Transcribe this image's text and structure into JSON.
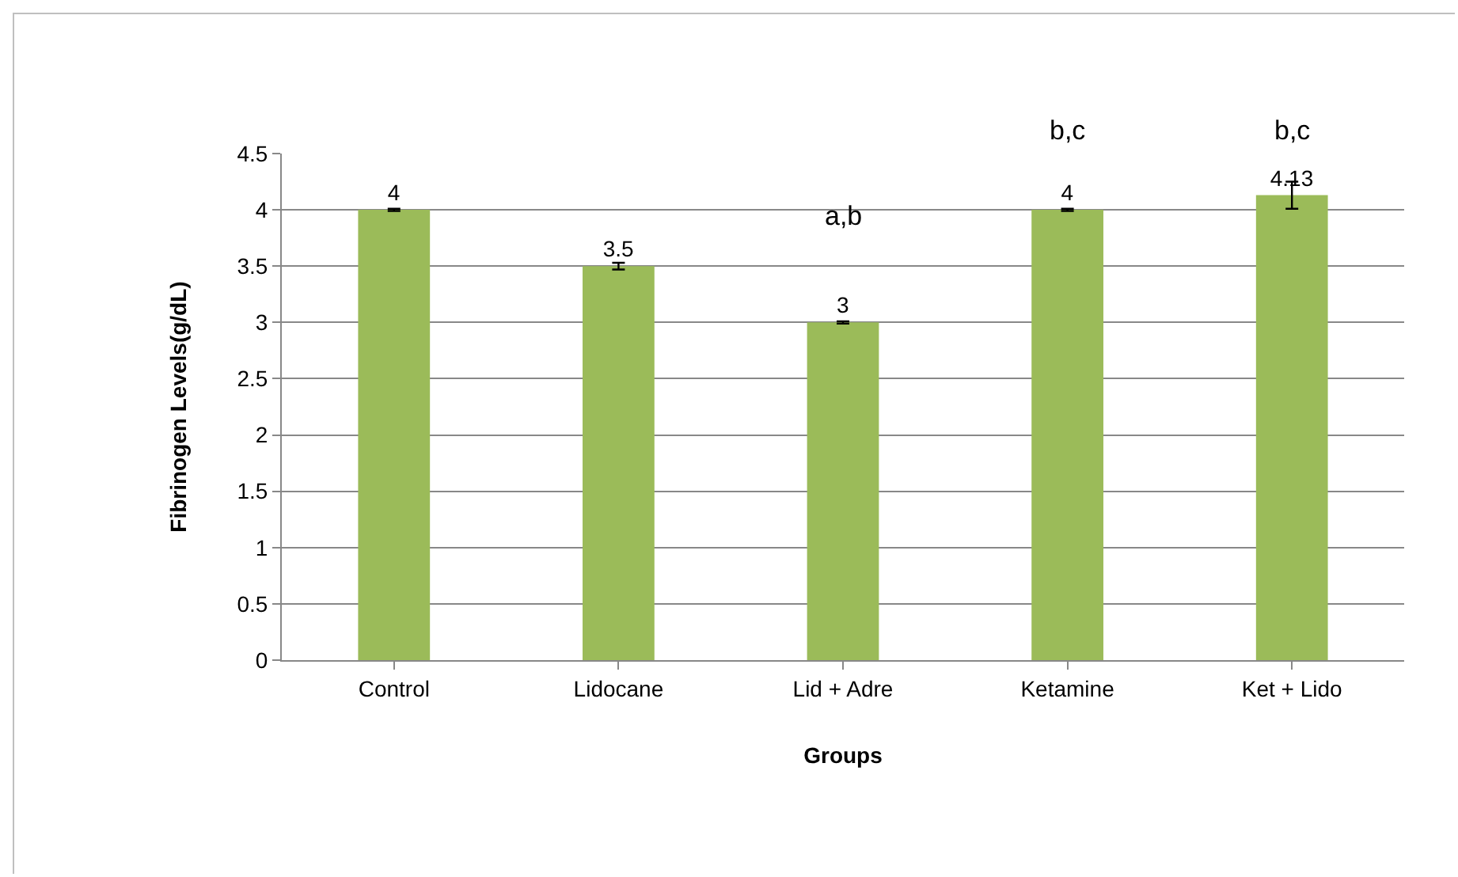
{
  "chart_data": {
    "type": "bar",
    "xlabel": "Groups",
    "ylabel": "Fibrinogen Levels(g/dL)",
    "categories": [
      "Control",
      "Lidocane",
      "Lid + Adre",
      "Ketamine",
      "Ket + Lido"
    ],
    "values": [
      4,
      3.5,
      3,
      4,
      4.13
    ],
    "color": "#9bbb59",
    "errors": [
      0.01,
      0.03,
      0.01,
      0.01,
      0.12
    ],
    "data_labels": true,
    "ylim": [
      0,
      4.5
    ],
    "yticks": [
      0,
      0.5,
      1,
      1.5,
      2,
      2.5,
      3,
      3.5,
      4,
      4.5
    ],
    "grid": "y",
    "annotations": [
      "a,b",
      "b,c",
      "b,c"
    ]
  }
}
